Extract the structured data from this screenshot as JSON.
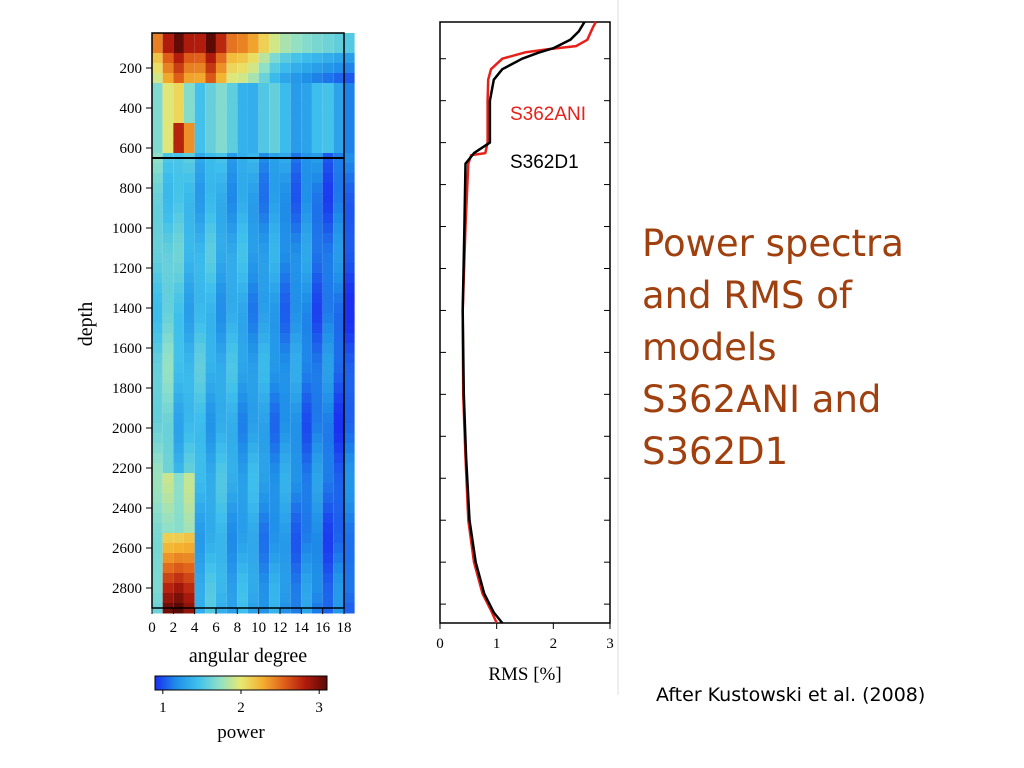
{
  "slide": {
    "title": "Power spectra\nand RMS of\nmodels\nS362ANI and\nS362D1",
    "citation": "After Kustowski et al. (2008)",
    "title_color": "#a0400f"
  },
  "chart_data": [
    {
      "type": "heatmap",
      "xlabel": "angular degree",
      "ylabel": "depth",
      "x_ticks": [
        0,
        2,
        4,
        6,
        8,
        10,
        12,
        14,
        16,
        18
      ],
      "y_ticks": [
        200,
        400,
        600,
        800,
        1000,
        1200,
        1400,
        1600,
        1800,
        2000,
        2200,
        2400,
        2600,
        2800
      ],
      "xlim": [
        0,
        18
      ],
      "ylim": [
        2900,
        25
      ],
      "horizontal_line_depth": 650,
      "colorbar": {
        "label": "power",
        "range": [
          0.9,
          3.1
        ],
        "ticks": [
          1,
          2,
          3
        ],
        "colors": [
          "#1a2ff0",
          "#1f8fe8",
          "#3fc0ec",
          "#8fe0c8",
          "#e8e870",
          "#f4b030",
          "#e0601a",
          "#b01a0c",
          "#5a0a06"
        ]
      }
    },
    {
      "type": "line",
      "xlabel": "RMS [%]",
      "ylabel": "",
      "x_ticks": [
        0,
        1,
        2,
        3
      ],
      "xlim": [
        0,
        3
      ],
      "ylim": [
        2890,
        25
      ],
      "series": [
        {
          "name": "S362ANI",
          "color": "#e8201a",
          "points": [
            [
              2.75,
              25
            ],
            [
              2.7,
              50
            ],
            [
              2.6,
              110
            ],
            [
              2.4,
              140
            ],
            [
              1.9,
              155
            ],
            [
              1.5,
              170
            ],
            [
              1.1,
              200
            ],
            [
              0.9,
              250
            ],
            [
              0.85,
              300
            ],
            [
              0.84,
              400
            ],
            [
              0.84,
              600
            ],
            [
              0.8,
              650
            ],
            [
              0.55,
              660
            ],
            [
              0.5,
              700
            ],
            [
              0.45,
              1000
            ],
            [
              0.4,
              1400
            ],
            [
              0.41,
              1800
            ],
            [
              0.45,
              2100
            ],
            [
              0.5,
              2400
            ],
            [
              0.6,
              2600
            ],
            [
              0.75,
              2750
            ],
            [
              0.9,
              2830
            ],
            [
              1.0,
              2890
            ]
          ]
        },
        {
          "name": "S362D1",
          "color": "#000000",
          "points": [
            [
              2.55,
              25
            ],
            [
              2.45,
              70
            ],
            [
              2.3,
              110
            ],
            [
              2.0,
              150
            ],
            [
              1.75,
              170
            ],
            [
              1.45,
              200
            ],
            [
              1.1,
              250
            ],
            [
              0.95,
              300
            ],
            [
              0.88,
              400
            ],
            [
              0.88,
              600
            ],
            [
              0.6,
              650
            ],
            [
              0.45,
              700
            ],
            [
              0.43,
              1000
            ],
            [
              0.4,
              1400
            ],
            [
              0.42,
              1800
            ],
            [
              0.46,
              2100
            ],
            [
              0.52,
              2400
            ],
            [
              0.63,
              2600
            ],
            [
              0.78,
              2750
            ],
            [
              0.95,
              2840
            ],
            [
              1.1,
              2890
            ]
          ]
        }
      ]
    }
  ]
}
